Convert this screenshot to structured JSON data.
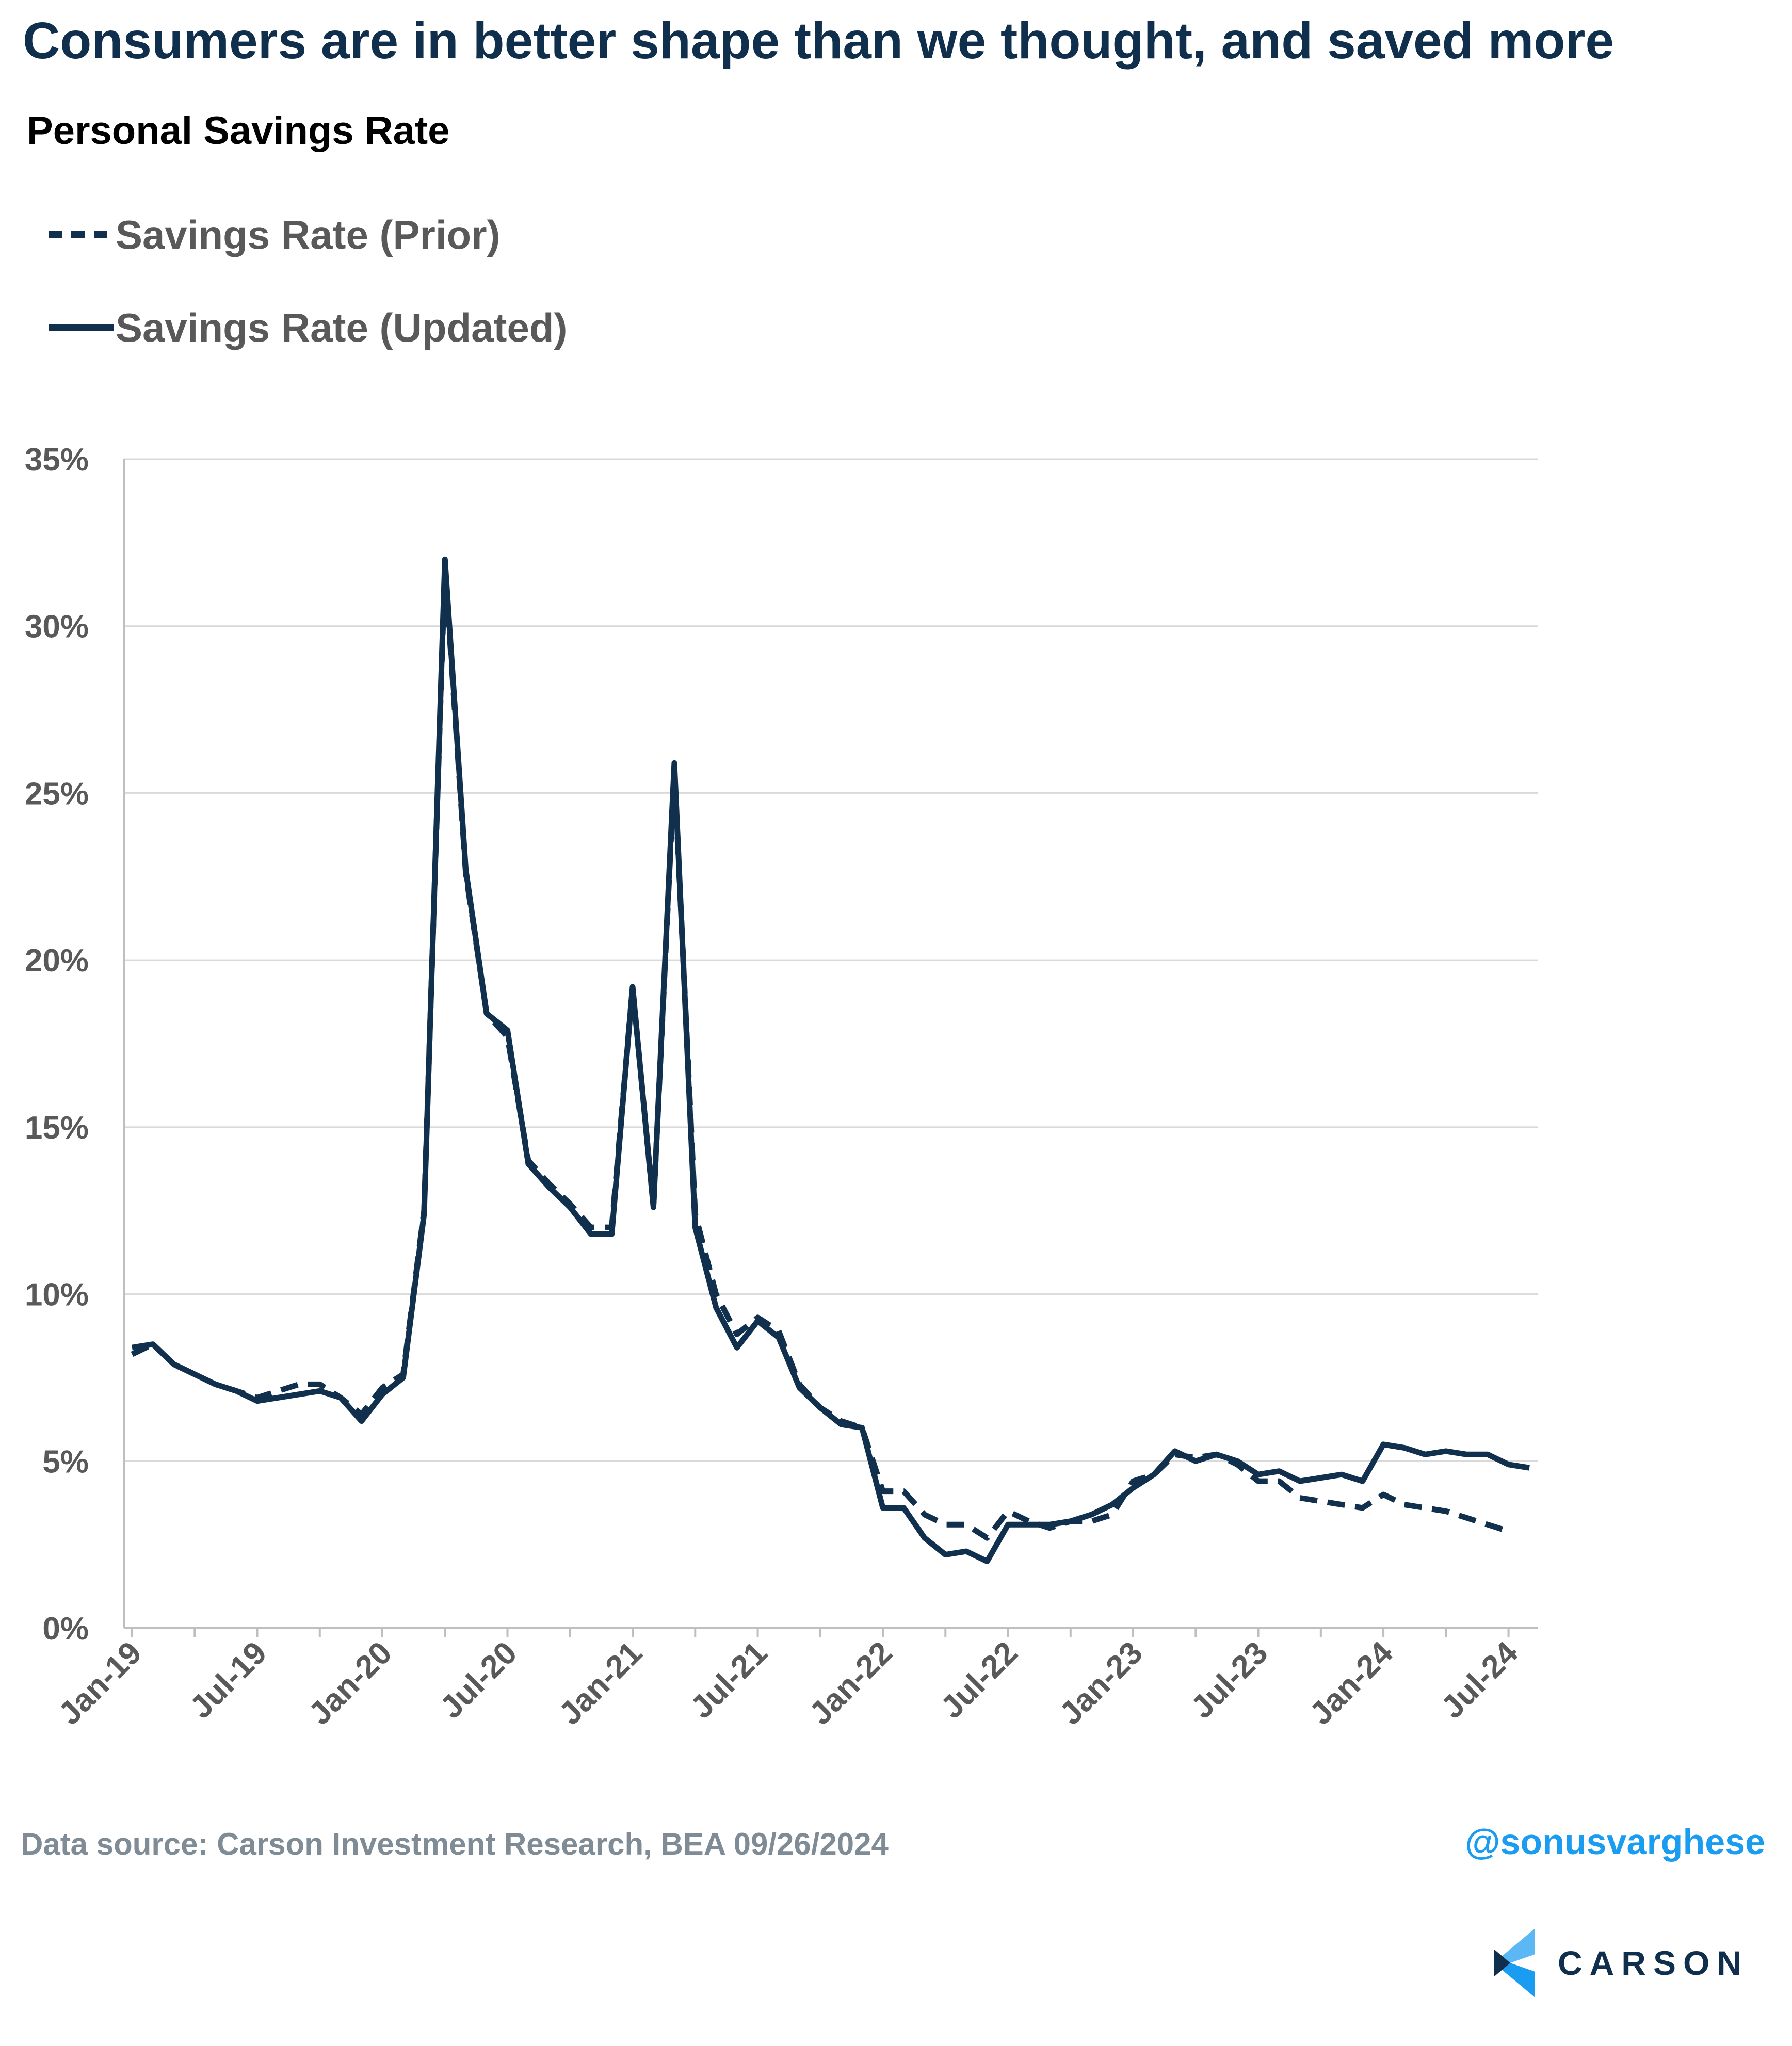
{
  "header": {
    "title": "Consumers are in better shape than we thought, and saved more",
    "subtitle": "Personal Savings Rate"
  },
  "legend": {
    "prior": "Savings Rate (Prior)",
    "updated": "Savings Rate (Updated)"
  },
  "colors": {
    "line": "#10304d",
    "grid": "#d9d9d9",
    "axis_text": "#595959",
    "handle": "#1a9cf0",
    "logo_light": "#5bb8f5",
    "logo_dark": "#0f2f4d"
  },
  "chart_data": {
    "type": "line",
    "title": "Personal Savings Rate",
    "ylim": [
      0,
      35
    ],
    "yticks": [
      "0%",
      "5%",
      "10%",
      "15%",
      "20%",
      "25%",
      "30%",
      "35%"
    ],
    "yticks_values": [
      0,
      5,
      10,
      15,
      20,
      25,
      30,
      35
    ],
    "x_start": "Jan-19",
    "xtick_labels": [
      "Jan-19",
      "Jul-19",
      "Jan-20",
      "Jul-20",
      "Jan-21",
      "Jul-21",
      "Jan-22",
      "Jul-22",
      "Jan-23",
      "Jul-23",
      "Jan-24",
      "Jul-24"
    ],
    "grid": "horizontal",
    "legend_position": "top-left",
    "series": [
      {
        "name": "Savings Rate (Updated)",
        "style": "solid",
        "values": [
          8.4,
          8.5,
          7.9,
          7.6,
          7.3,
          7.1,
          6.8,
          6.9,
          7.0,
          7.1,
          6.9,
          6.2,
          7.0,
          7.5,
          12.4,
          32.0,
          22.7,
          18.4,
          17.9,
          13.9,
          13.2,
          12.6,
          11.8,
          11.8,
          19.2,
          12.6,
          25.9,
          12.0,
          9.6,
          8.4,
          9.2,
          8.7,
          7.2,
          6.6,
          6.1,
          6.0,
          3.6,
          3.6,
          2.7,
          2.2,
          2.3,
          2.0,
          3.1,
          3.1,
          3.1,
          3.2,
          3.4,
          3.7,
          4.2,
          4.6,
          5.3,
          5.0,
          5.2,
          5.0,
          4.6,
          4.7,
          4.4,
          4.5,
          4.6,
          4.4,
          5.5,
          5.4,
          5.2,
          5.3,
          5.2,
          5.2,
          4.9,
          4.8
        ]
      },
      {
        "name": "Savings Rate (Prior)",
        "style": "dashed",
        "values": [
          8.2,
          8.5,
          7.9,
          7.6,
          7.3,
          7.1,
          6.9,
          7.1,
          7.3,
          7.3,
          6.9,
          6.4,
          7.2,
          7.6,
          12.5,
          31.8,
          22.6,
          18.4,
          17.7,
          14.0,
          13.3,
          12.7,
          12.0,
          12.0,
          19.2,
          12.6,
          25.7,
          12.4,
          10.0,
          8.8,
          9.3,
          8.9,
          7.3,
          6.6,
          6.2,
          6.0,
          4.1,
          4.1,
          3.4,
          3.1,
          3.1,
          2.7,
          3.5,
          3.2,
          3.0,
          3.2,
          3.2,
          3.4,
          4.4,
          4.6,
          5.2,
          5.1,
          5.2,
          4.9,
          4.4,
          4.4,
          3.9,
          3.8,
          3.7,
          3.6,
          4.0,
          3.7,
          3.6,
          3.5,
          3.3,
          3.1,
          2.9
        ]
      }
    ]
  },
  "footer": {
    "source": "Data source: Carson Investment Research, BEA   09/26/2024",
    "handle": "@sonusvarghese"
  },
  "brand": {
    "name": "CARSON",
    "icon": "carson-logo-icon"
  }
}
